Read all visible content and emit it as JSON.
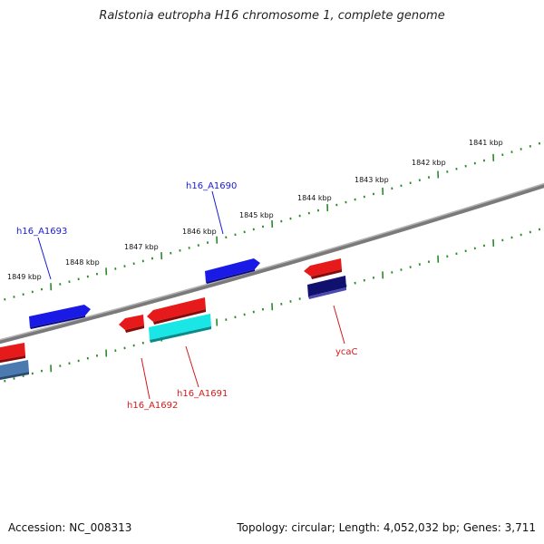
{
  "title": "Ralstonia eutropha H16 chromosome 1, complete genome",
  "footer": {
    "accession": "Accession: NC_008313",
    "summary": "Topology: circular; Length: 4,052,032 bp; Genes: 3,711"
  },
  "kbp_labels": [
    "1849 kbp",
    "1848 kbp",
    "1847 kbp",
    "1846 kbp",
    "1845 kbp",
    "1844 kbp",
    "1843 kbp",
    "1842 kbp",
    "1841 kbp"
  ],
  "gene_labels": {
    "h16_A1693": "h16_A1693",
    "h16_A1690": "h16_A1690",
    "h16_A1692": "h16_A1692",
    "h16_A1691": "h16_A1691",
    "ycaC": "ycaC"
  },
  "colors": {
    "backbone": "#7a7a7a",
    "ticks": "#2a8a2a",
    "gene_blue": "#1a1ae6",
    "gene_red": "#e61a1a",
    "gene_cyan": "#1ae6e6",
    "gene_navy": "#10106e",
    "gene_steel": "#4a7ab0"
  }
}
